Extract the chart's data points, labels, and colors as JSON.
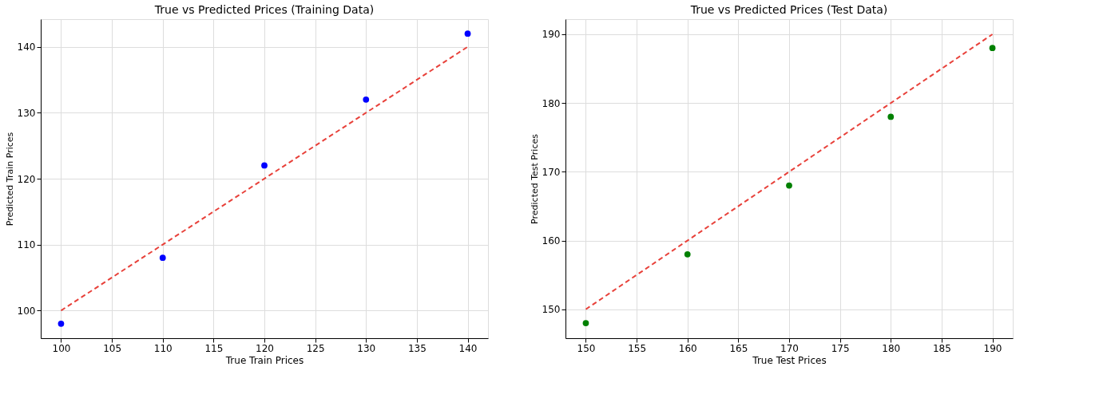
{
  "chart_data": [
    {
      "type": "scatter",
      "title": "True vs Predicted Prices (Training Data)",
      "xlabel": "True Train Prices",
      "ylabel": "Predicted Train Prices",
      "xlim": [
        98,
        142
      ],
      "ylim": [
        95.8,
        144.2
      ],
      "xticks": [
        100,
        105,
        110,
        115,
        120,
        125,
        130,
        135,
        140
      ],
      "yticks": [
        100,
        110,
        120,
        130,
        140
      ],
      "grid": true,
      "marker": "circle",
      "series": [
        {
          "color": "#0000ff",
          "x": [
            100,
            110,
            120,
            130,
            140
          ],
          "values": [
            98,
            108,
            122,
            132,
            142
          ]
        },
        {
          "type": "line",
          "color": "#e8413a",
          "line_style": "dashed",
          "marker": "none",
          "x": [
            100,
            140
          ],
          "values": [
            100,
            140
          ]
        }
      ]
    },
    {
      "type": "scatter",
      "title": "True vs Predicted Prices (Test Data)",
      "xlabel": "True Test Prices",
      "ylabel": "Predicted Test Prices",
      "xlim": [
        148,
        192
      ],
      "ylim": [
        145.8,
        192.2
      ],
      "xticks": [
        150,
        155,
        160,
        165,
        170,
        175,
        180,
        185,
        190
      ],
      "yticks": [
        150,
        160,
        170,
        180,
        190
      ],
      "grid": true,
      "marker": "circle",
      "series": [
        {
          "color": "#008000",
          "x": [
            150,
            160,
            170,
            180,
            190
          ],
          "values": [
            148,
            158,
            168,
            178,
            188
          ]
        },
        {
          "type": "line",
          "color": "#e8413a",
          "line_style": "dashed",
          "marker": "none",
          "x": [
            150,
            190
          ],
          "values": [
            150,
            190
          ]
        }
      ]
    }
  ]
}
